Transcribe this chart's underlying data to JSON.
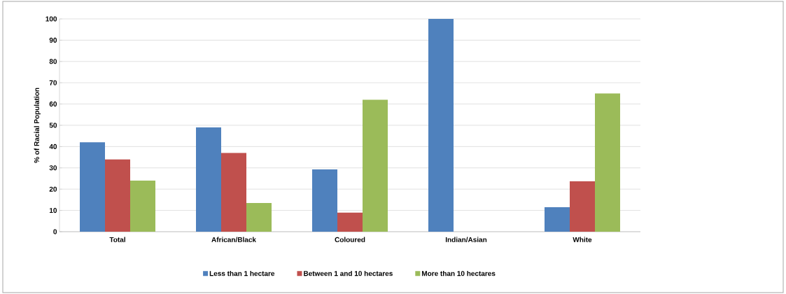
{
  "chart_data": {
    "type": "bar",
    "ylabel": "% of Racial Population",
    "categories": [
      "Total",
      "African/Black",
      "Coloured",
      "Indian/Asian",
      "White"
    ],
    "series": [
      {
        "name": "Less than 1 hectare",
        "color": "#4f81bd",
        "values": [
          42,
          49,
          29.3,
          100,
          11.5
        ]
      },
      {
        "name": "Between 1 and 10 hectares",
        "color": "#c0504d",
        "values": [
          34,
          37,
          9,
          0,
          23.7
        ]
      },
      {
        "name": "More than 10 hectares",
        "color": "#9bbb59",
        "values": [
          24,
          13.5,
          62,
          0,
          65
        ]
      }
    ],
    "ylim": [
      0,
      100
    ],
    "yticks": [
      0,
      10,
      20,
      30,
      40,
      50,
      60,
      70,
      80,
      90,
      100
    ],
    "grid": "y",
    "legend": "bottom"
  }
}
